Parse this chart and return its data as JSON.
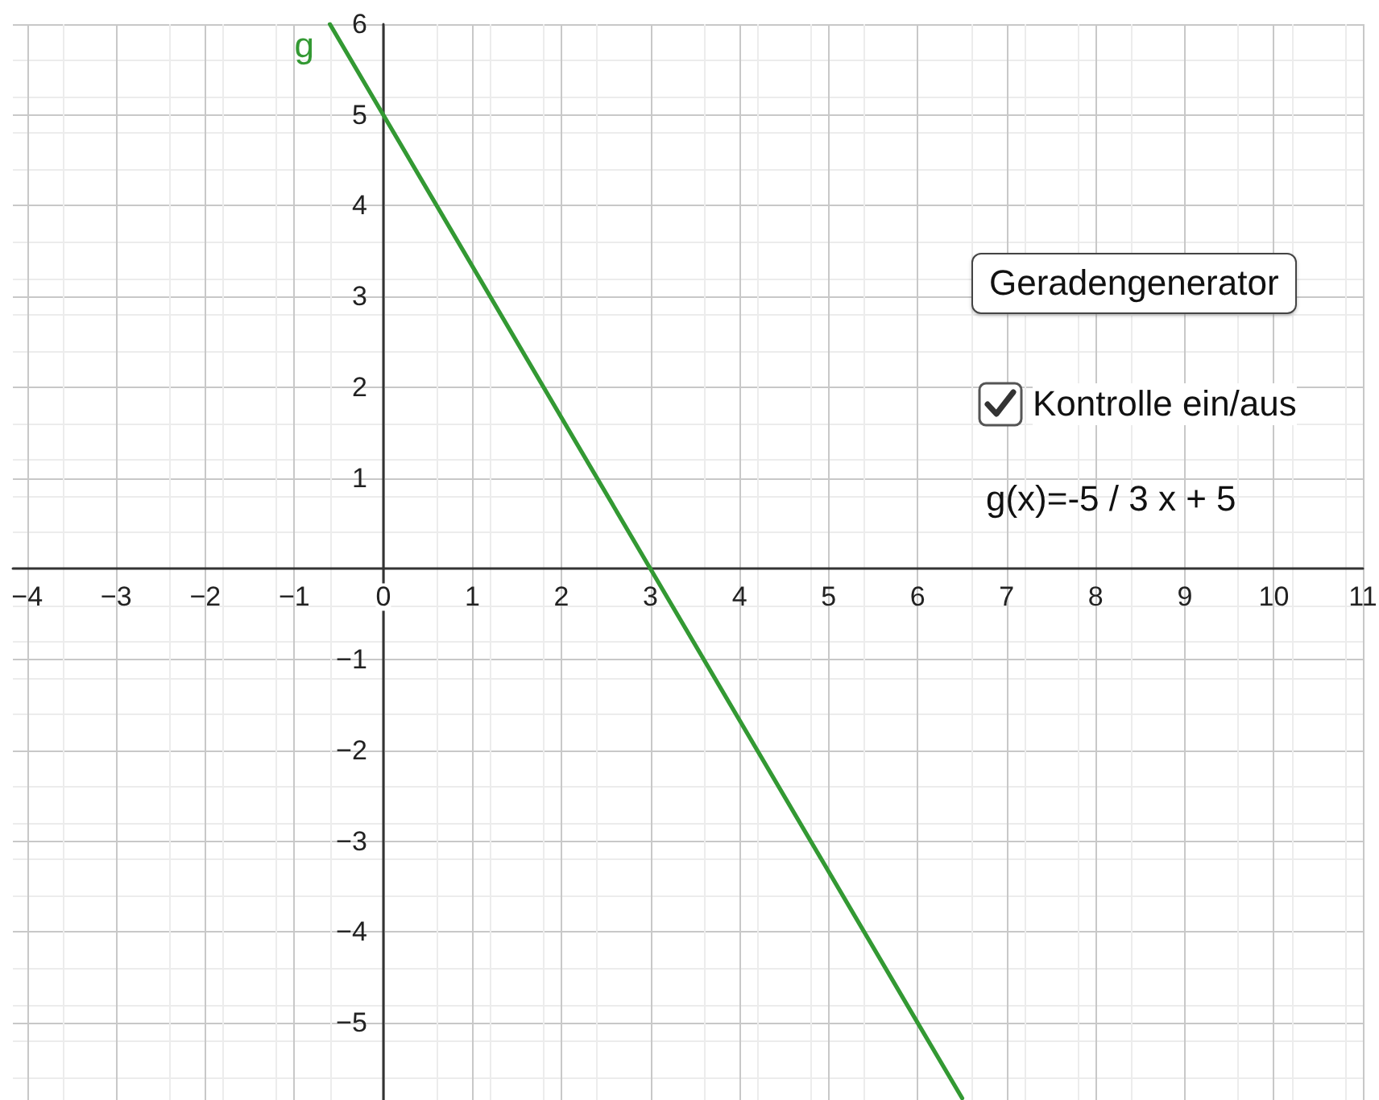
{
  "chart_data": {
    "type": "line",
    "x": [
      -0.6,
      0,
      3,
      6,
      6.5
    ],
    "series": [
      {
        "name": "g",
        "color": "#339933",
        "values": [
          6,
          5,
          0,
          -5,
          -5.83
        ]
      }
    ],
    "xlim": [
      -4.16,
      11
    ],
    "ylim": [
      -5.85,
      6
    ],
    "xticks": [
      {
        "value": -4,
        "label": "−4"
      },
      {
        "value": -3,
        "label": "−3"
      },
      {
        "value": -2,
        "label": "−2"
      },
      {
        "value": -1,
        "label": "−1"
      },
      0,
      1,
      2,
      3,
      4,
      5,
      6,
      7,
      8,
      9,
      10,
      11
    ],
    "yticks": [
      {
        "value": -5,
        "label": "−5"
      },
      {
        "value": -4,
        "label": "−4"
      },
      {
        "value": -3,
        "label": "−3"
      },
      {
        "value": -2,
        "label": "−2"
      },
      {
        "value": -1,
        "label": "−1"
      },
      1,
      2,
      3,
      4,
      5,
      6
    ],
    "grid": true,
    "marker": "none",
    "line_style": "solid",
    "annotations": [
      "Geradengenerator",
      "Kontrolle ein/aus",
      "g(x)=-5 / 3 x + 5"
    ]
  }
}
